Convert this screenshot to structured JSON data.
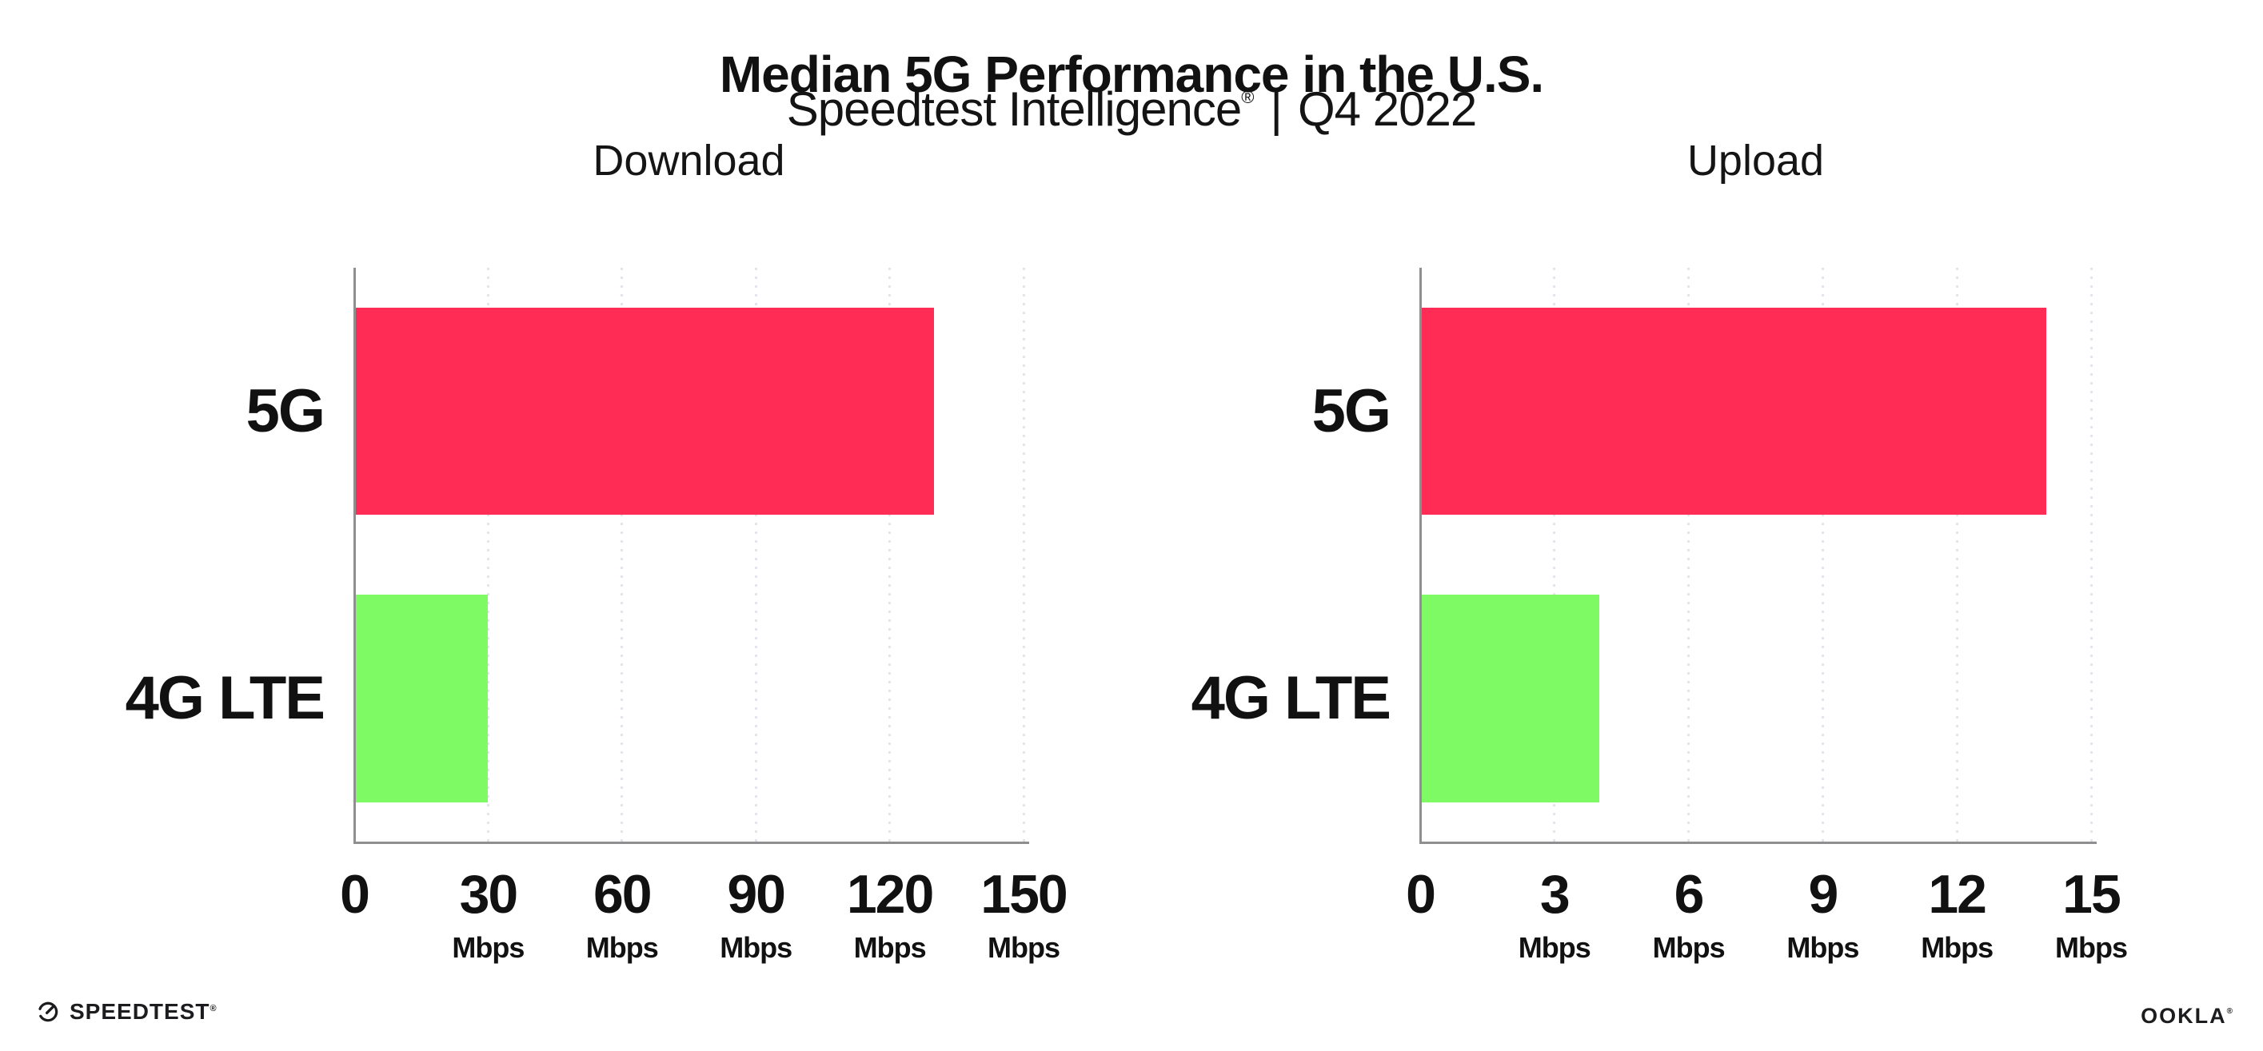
{
  "header": {
    "title": "Median 5G Performance in the U.S.",
    "subtitle_brand": "Speedtest Intelligence",
    "subtitle_registered": "®",
    "subtitle_separator": "|",
    "subtitle_period": "Q4 2022"
  },
  "chart_data": [
    {
      "type": "bar",
      "orientation": "horizontal",
      "title": "Download",
      "categories": [
        "5G",
        "4G LTE"
      ],
      "values": [
        130,
        30
      ],
      "unit": "Mbps",
      "xlim": [
        0,
        150
      ],
      "xticks": [
        0,
        30,
        60,
        90,
        120,
        150
      ],
      "series_colors": [
        "#FF2D55",
        "#7EFA64"
      ],
      "grid": "vertical-dotted",
      "legend": "none"
    },
    {
      "type": "bar",
      "orientation": "horizontal",
      "title": "Upload",
      "categories": [
        "5G",
        "4G LTE"
      ],
      "values": [
        14,
        4
      ],
      "unit": "Mbps",
      "xlim": [
        0,
        15
      ],
      "xticks": [
        0,
        3,
        6,
        9,
        12,
        15
      ],
      "series_colors": [
        "#FF2D55",
        "#7EFA64"
      ],
      "grid": "vertical-dotted",
      "legend": "none"
    }
  ],
  "footer": {
    "speedtest_wordmark": "SPEEDTEST",
    "speedtest_trademark": "®",
    "ookla_wordmark": "OOKLA",
    "ookla_registered": "®"
  },
  "colors": {
    "background": "#FFFFFF",
    "bar_5g": "#FF2D55",
    "bar_4g_lte": "#7EFA64",
    "axis_line": "#8F8F8F",
    "gridline": "#E4E4EC",
    "text": "#111111"
  }
}
